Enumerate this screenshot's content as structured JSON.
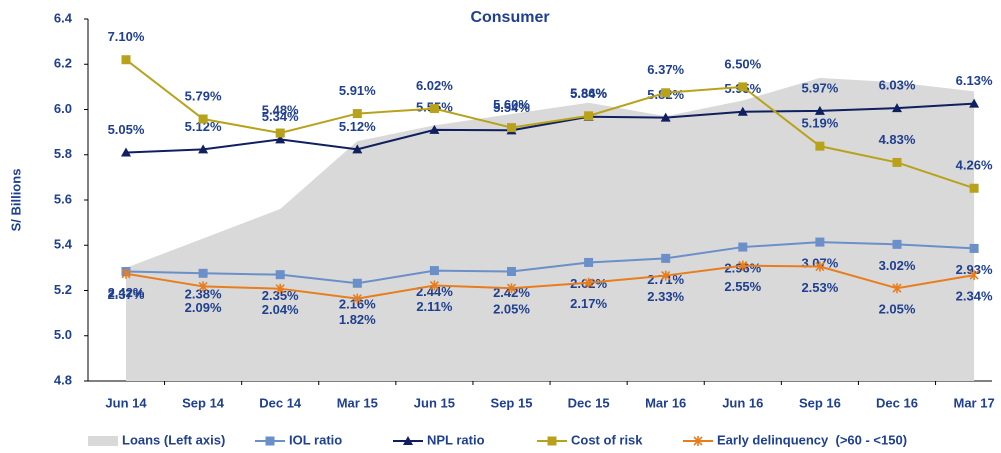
{
  "chart_data": {
    "type": "line",
    "title": "Consumer",
    "ylabel": "S/ Billions",
    "categories": [
      "Jun 14",
      "Sep 14",
      "Dec 14",
      "Mar 15",
      "Jun 15",
      "Sep 15",
      "Dec 15",
      "Mar 16",
      "Jun 16",
      "Sep 16",
      "Dec 16",
      "Mar 17"
    ],
    "ylim": [
      4.8,
      6.4
    ],
    "yticks": [
      4.8,
      {
        "value": 5,
        "label": "5.0"
      },
      5.2,
      5.4,
      5.6,
      5.8,
      {
        "value": 6,
        "label": "6.0"
      },
      6.2,
      6.4
    ],
    "y2lim": [
      0,
      8
    ],
    "grid": false,
    "legend": "bottom",
    "series": [
      {
        "name": "Loans (Left axis)",
        "type": "area",
        "color": "#d9d9d9",
        "values": [
          5.3,
          5.43,
          5.56,
          5.86,
          5.93,
          5.98,
          6.03,
          5.97,
          6.04,
          6.14,
          6.12,
          6.08
        ]
      },
      {
        "name": "IOL ratio",
        "color": "#6b8fc8",
        "marker": "square",
        "axis": "y2",
        "values": [
          2.42,
          2.38,
          2.35,
          2.16,
          2.44,
          2.42,
          2.62,
          2.71,
          2.96,
          3.07,
          3.02,
          2.93
        ],
        "value_labels": [
          "2.42%",
          "2.38%",
          "2.35%",
          "2.16%",
          "2.44%",
          "2.42%",
          "2.62%",
          "2.71%",
          "2.96%",
          "3.07%",
          "3.02%",
          "2.93%"
        ]
      },
      {
        "name": "NPL ratio",
        "color": "#0f1f5f",
        "marker": "triangle",
        "axis": "y2",
        "values": [
          5.05,
          5.12,
          5.34,
          5.12,
          5.55,
          5.54,
          5.84,
          5.82,
          5.95,
          5.97,
          6.03,
          6.13
        ],
        "value_labels": [
          "5.05%",
          "5.12%",
          "5.34%",
          "5.12%",
          "5.55%",
          "5.54%",
          "5.84%",
          "5.82%",
          "5.95%",
          "5.97%",
          "6.03%",
          "6.13%"
        ]
      },
      {
        "name": "Cost of risk",
        "color": "#b8a21b",
        "marker": "square",
        "axis": "y2",
        "values": [
          7.1,
          5.79,
          5.48,
          5.91,
          6.02,
          5.6,
          5.86,
          6.37,
          6.5,
          5.19,
          4.83,
          4.26
        ],
        "value_labels": [
          "7.10%",
          "5.79%",
          "5.48%",
          "5.91%",
          "6.02%",
          "5.60%",
          "5.86%",
          "6.37%",
          "6.50%",
          "5.19%",
          "4.83%",
          "4.26%"
        ]
      },
      {
        "name": "Early delinquency  (>60 - <150)",
        "color": "#e87d1e",
        "marker": "star",
        "axis": "y2",
        "values": [
          2.37,
          2.09,
          2.04,
          1.82,
          2.11,
          2.05,
          2.17,
          2.33,
          2.55,
          2.53,
          2.05,
          2.34
        ],
        "value_labels": [
          "2.37%",
          "2.09%",
          "2.04%",
          "1.82%",
          "2.11%",
          "2.05%",
          "2.17%",
          "2.33%",
          "2.55%",
          "2.53%",
          "2.05%",
          "2.34%"
        ]
      }
    ]
  }
}
